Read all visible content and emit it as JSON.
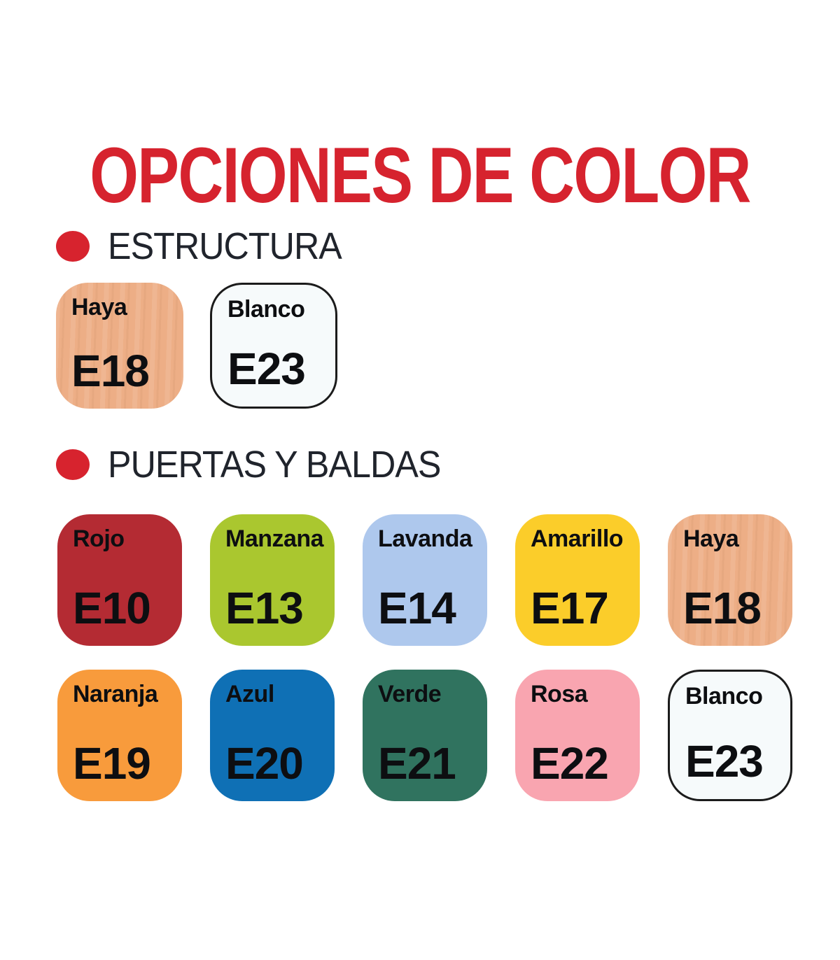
{
  "title": {
    "text": "OPCIONES DE COLOR",
    "color": "#d6232e"
  },
  "accent": {
    "bullet_color": "#d7232e",
    "heading_color": "#20242c",
    "swatch_label_color": "#0d0e11"
  },
  "sections": [
    {
      "label": "ESTRUCTURA",
      "swatches": [
        {
          "name": "Haya",
          "code": "E18",
          "fill": "#edae86",
          "texture": "wood"
        },
        {
          "name": "Blanco",
          "code": "E23",
          "fill": "#f6fafb",
          "border": "#1b1b1b"
        }
      ]
    },
    {
      "label": "PUERTAS Y BALDAS",
      "swatches": [
        {
          "name": "Rojo",
          "code": "E10",
          "fill": "#b42b33"
        },
        {
          "name": "Manzana",
          "code": "E13",
          "fill": "#aac72f"
        },
        {
          "name": "Lavanda",
          "code": "E14",
          "fill": "#aec8ed"
        },
        {
          "name": "Amarillo",
          "code": "E17",
          "fill": "#fbcd2a"
        },
        {
          "name": "Haya",
          "code": "E18",
          "fill": "#edae86",
          "texture": "wood"
        },
        {
          "name": "Naranja",
          "code": "E19",
          "fill": "#f89b3c"
        },
        {
          "name": "Azul",
          "code": "E20",
          "fill": "#0f70b5"
        },
        {
          "name": "Verde",
          "code": "E21",
          "fill": "#30735f"
        },
        {
          "name": "Rosa",
          "code": "E22",
          "fill": "#f9a5b0"
        },
        {
          "name": "Blanco",
          "code": "E23",
          "fill": "#f6fafb",
          "border": "#1b1b1b"
        }
      ]
    }
  ]
}
